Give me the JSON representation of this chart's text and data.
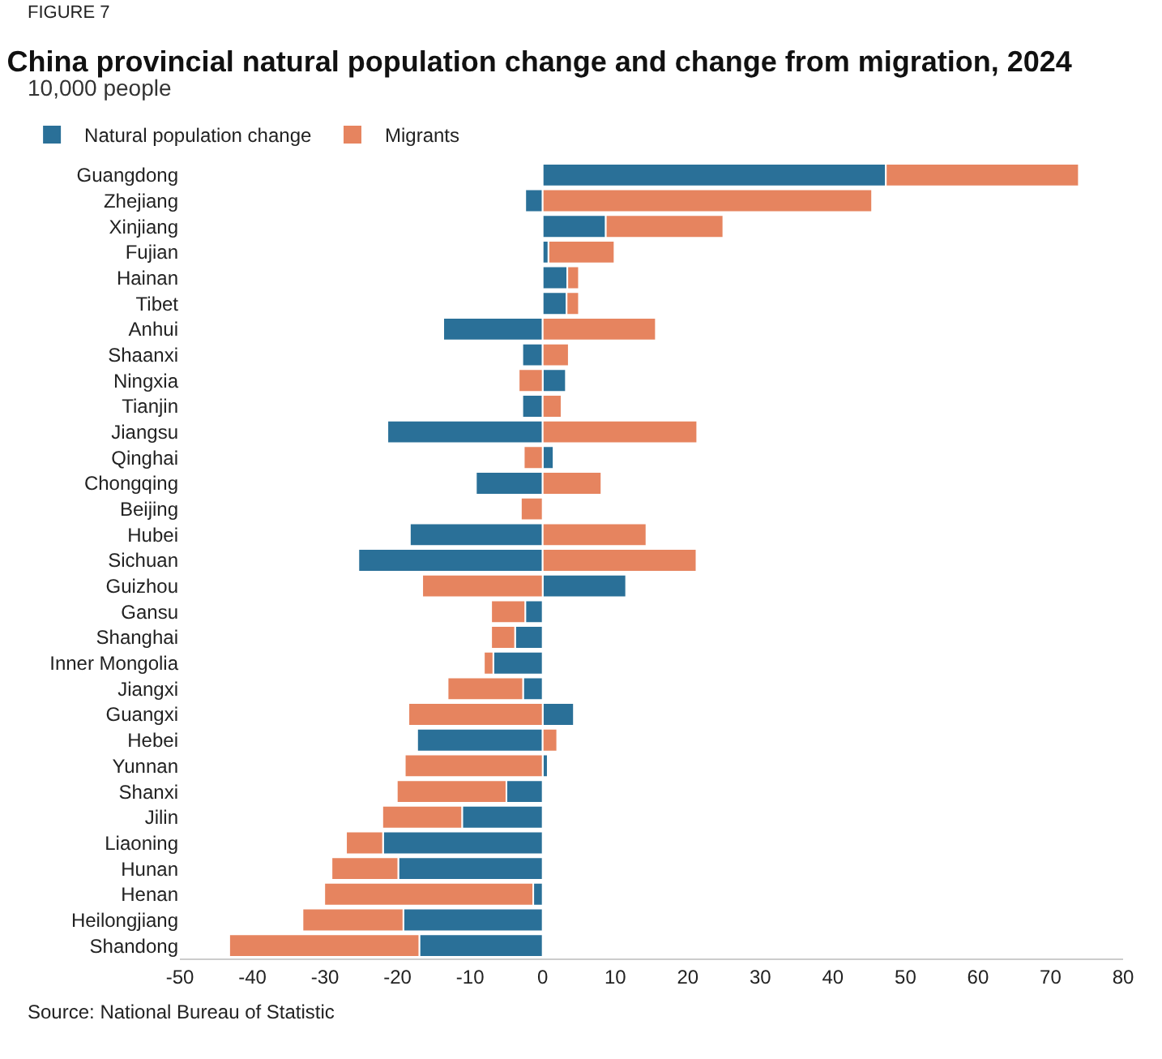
{
  "chart_data": {
    "type": "bar",
    "orientation": "horizontal",
    "stacked": true,
    "title": "China provincial natural population change and change from migration, 2024",
    "subtitle": "10,000 people",
    "annotations": [
      "FIGURE 7",
      "Source: National Bureau of Statistic"
    ],
    "categories": [
      "Guangdong",
      "Zhejiang",
      "Xinjiang",
      "Fujian",
      "Hainan",
      "Tibet",
      "Anhui",
      "Shaanxi",
      "Ningxia",
      "Tianjin",
      "Jiangsu",
      "Qinghai",
      "Chongqing",
      "Beijing",
      "Hubei",
      "Sichuan",
      "Guizhou",
      "Gansu",
      "Shanghai",
      "Inner Mongolia",
      "Jiangxi",
      "Guangxi",
      "Hebei",
      "Yunnan",
      "Shanxi",
      "Jilin",
      "Liaoning",
      "Hunan",
      "Henan",
      "Heilongjiang",
      "Shandong"
    ],
    "series": [
      {
        "name": "Natural population change",
        "color": "#2a7098",
        "values": [
          47.3,
          -2.4,
          8.7,
          0.8,
          3.4,
          3.3,
          -13.7,
          -2.8,
          3.2,
          -2.8,
          -21.4,
          1.5,
          -9.2,
          null,
          -18.3,
          -25.4,
          11.5,
          -2.4,
          -3.8,
          -6.8,
          -2.7,
          4.3,
          -17.3,
          0.7,
          -5.0,
          -11.1,
          -22.0,
          -19.9,
          -1.3,
          -19.2,
          -17.0
        ]
      },
      {
        "name": "Migrants",
        "color": "#e6845f",
        "values": [
          26.6,
          45.4,
          16.2,
          9.1,
          1.6,
          1.7,
          15.6,
          3.6,
          -3.3,
          2.6,
          21.3,
          -2.6,
          8.1,
          -3.0,
          14.3,
          21.2,
          -16.6,
          -4.7,
          -3.3,
          -1.3,
          -10.4,
          -18.5,
          2.0,
          -19.0,
          -15.1,
          -11.0,
          -5.1,
          -9.2,
          -28.8,
          -13.9,
          -26.2
        ]
      }
    ],
    "xlim": [
      -50,
      80
    ],
    "xticks": [
      -50,
      -40,
      -30,
      -20,
      -10,
      0,
      10,
      20,
      30,
      40,
      50,
      60,
      70,
      80
    ],
    "legend": "top left",
    "grid": false
  }
}
